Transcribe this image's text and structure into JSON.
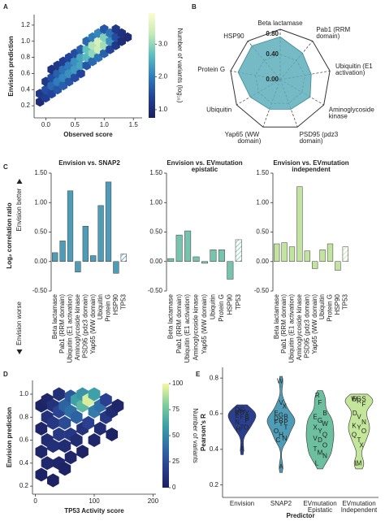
{
  "panel_labels": [
    "A",
    "B",
    "C",
    "D",
    "E"
  ],
  "chart_data": [
    {
      "type": "hexbin",
      "xlabel": "Observed score",
      "ylabel": "Envision prediction",
      "x": [
        -0.1,
        -0.1,
        0,
        0,
        0,
        0.1,
        0.1,
        0.1,
        0.1,
        0.2,
        0.2,
        0.2,
        0.2,
        0.3,
        0.3,
        0.3,
        0.3,
        0.4,
        0.4,
        0.4,
        0.4,
        0.5,
        0.5,
        0.5,
        0.5,
        0.6,
        0.6,
        0.6,
        0.6,
        0.7,
        0.7,
        0.7,
        0.7,
        0.8,
        0.8,
        0.8,
        0.8,
        0.9,
        0.9,
        0.9,
        0.9,
        1.0,
        1.0,
        1.0,
        1.0,
        1.1,
        1.1,
        1.1,
        1.2,
        1.2,
        1.2,
        1.3,
        1.3,
        1.4
      ],
      "y": [
        0.25,
        0.35,
        0.3,
        0.4,
        0.5,
        0.35,
        0.45,
        0.55,
        0.65,
        0.4,
        0.5,
        0.6,
        0.7,
        0.45,
        0.55,
        0.65,
        0.75,
        0.5,
        0.6,
        0.7,
        0.8,
        0.55,
        0.65,
        0.75,
        0.85,
        0.6,
        0.7,
        0.8,
        0.9,
        0.7,
        0.8,
        0.9,
        1.0,
        0.75,
        0.85,
        0.95,
        1.05,
        0.8,
        0.9,
        1.0,
        1.1,
        0.85,
        0.95,
        1.05,
        1.15,
        0.9,
        1.0,
        1.1,
        0.95,
        1.05,
        1.15,
        1.0,
        1.1,
        1.05
      ],
      "values": [
        1.0,
        1.2,
        1.3,
        1.5,
        1.2,
        1.4,
        1.8,
        1.5,
        1.1,
        1.6,
        2.0,
        1.7,
        1.2,
        1.7,
        2.1,
        1.9,
        1.3,
        1.6,
        2.2,
        2.0,
        1.4,
        1.5,
        2.3,
        2.2,
        1.5,
        1.4,
        2.4,
        2.4,
        1.7,
        1.6,
        2.6,
        2.7,
        1.8,
        1.8,
        3.0,
        3.2,
        2.0,
        1.9,
        3.4,
        3.5,
        2.1,
        1.7,
        3.1,
        2.9,
        1.6,
        1.4,
        2.2,
        1.9,
        1.2,
        1.5,
        1.2,
        1.0,
        1.1,
        1.0
      ],
      "xlim": [
        -0.2,
        1.65
      ],
      "ylim": [
        0.05,
        1.33
      ],
      "xticks": [
        {
          "value": 0,
          "label": "0.0"
        },
        0.5,
        {
          "value": 1,
          "label": "1.0"
        },
        1.5
      ],
      "yticks": [
        0.2,
        0.4,
        0.6,
        0.8,
        {
          "value": 1,
          "label": "1.0"
        },
        1.2
      ],
      "colorbar": {
        "label": "Number of variants (log₁₀)",
        "lim": [
          0.75,
          3.95
        ],
        "ticks": [
          {
            "value": 1,
            "label": "1.0"
          },
          {
            "value": 2,
            "label": "2.0"
          },
          {
            "value": 3,
            "label": "3.0"
          }
        ]
      },
      "colormap": [
        "#1b1f5e",
        "#22429a",
        "#2f7fbd",
        "#5cc0c0",
        "#c6ebb4",
        "#fbfdd0"
      ]
    },
    {
      "type": "radar",
      "categories": [
        "Beta lactamase",
        "Pab1 (RRM domain)",
        "Ubiquitin (E1 activation)",
        "Aminoglycoside kinase",
        "PSD95 (pdz3 domain)",
        "Yap65 (WW domain)",
        "Ubiquitin",
        "Protein G",
        "HSP90"
      ],
      "values": [
        0.68,
        0.55,
        0.5,
        0.55,
        0.5,
        0.5,
        0.55,
        0.68,
        0.7
      ],
      "color": "#5eaebb",
      "rlim": [
        0,
        0.8
      ],
      "rticks": [
        {
          "value": 0,
          "label": "0.00"
        },
        {
          "value": 0.4,
          "label": "0.40"
        },
        {
          "value": 0.8,
          "label": "0.80"
        }
      ]
    },
    {
      "type": "bar",
      "title": "Envision vs. SNAP2",
      "ylabel": "Log₂ correlation ratio",
      "annotations": [
        "Envision better",
        "Envision worse"
      ],
      "categories": [
        "Beta lactamase",
        "Pab1 (RRM domain)",
        "Ubiquitin (E1 activation)",
        "Aminoglycoside kinase",
        "PSD95 (pdz3 domain)",
        "Yap65 (WW domain)",
        "Ubiquitin",
        "Protein G",
        "HSP90",
        "TP53"
      ],
      "values": [
        0.15,
        0.35,
        1.2,
        -0.18,
        0.6,
        0.1,
        0.95,
        1.35,
        -0.2,
        0.13
      ],
      "hatched": [
        false,
        false,
        false,
        false,
        false,
        false,
        false,
        false,
        false,
        true
      ],
      "color": "#4f9cb6",
      "ylim": [
        -0.5,
        1.5
      ],
      "yticks": [
        {
          "value": -0.5,
          "label": "-0.50"
        },
        {
          "value": 0,
          "label": "0.00"
        },
        {
          "value": 0.5,
          "label": "0.50"
        },
        {
          "value": 1,
          "label": "1.00"
        },
        {
          "value": 1.5,
          "label": "1.50"
        }
      ]
    },
    {
      "type": "bar",
      "title": "Envision vs. EVmutation",
      "subtitle": "epistatic",
      "categories": [
        "Beta lactamase",
        "Pab1 (RRM domain)",
        "Ubiquitin (E1 activation)",
        "Aminoglycoside kinase",
        "Yap65 (WW domain)",
        "Ubiquitin",
        "Protein G",
        "HSP90",
        "TP53"
      ],
      "values": [
        0.05,
        0.45,
        0.52,
        0.08,
        -0.03,
        0.2,
        0.2,
        -0.3,
        0.37
      ],
      "hatched": [
        false,
        false,
        false,
        false,
        false,
        false,
        false,
        false,
        true
      ],
      "color": "#78c3ad",
      "ylim": [
        -0.5,
        1.5
      ],
      "yticks": [
        {
          "value": -0.5,
          "label": "-0.50"
        },
        {
          "value": 0,
          "label": "0.00"
        },
        {
          "value": 0.5,
          "label": "0.50"
        },
        {
          "value": 1,
          "label": "1.00"
        },
        {
          "value": 1.5,
          "label": "1.50"
        }
      ]
    },
    {
      "type": "bar",
      "title": "Envision vs. EVmutation",
      "subtitle": "independent",
      "categories": [
        "Beta lactamase",
        "Pab1 (RRM domain)",
        "Ubiquitin (E1 activation)",
        "Aminoglycoside kinase",
        "PSD95 (pdz3 domain)",
        "Yap65 (WW domain)",
        "Ubiquitin",
        "Protein G",
        "HSP90",
        "TP53"
      ],
      "values": [
        0.3,
        0.32,
        0.25,
        1.27,
        0.18,
        -0.12,
        0.2,
        0.3,
        -0.15,
        0.25
      ],
      "hatched": [
        false,
        false,
        false,
        false,
        false,
        false,
        false,
        false,
        false,
        true
      ],
      "color": "#c3e3a1",
      "ylim": [
        -0.5,
        1.5
      ],
      "yticks": [
        {
          "value": -0.5,
          "label": "-0.50"
        },
        {
          "value": 0,
          "label": "0.00"
        },
        {
          "value": 0.5,
          "label": "0.50"
        },
        {
          "value": 1,
          "label": "1.00"
        },
        {
          "value": 1.5,
          "label": "1.50"
        }
      ]
    },
    {
      "type": "hexbin",
      "xlabel": "TP53 Activity score",
      "ylabel": "Envision prediction",
      "x": [
        10,
        10,
        10,
        10,
        20,
        20,
        20,
        20,
        30,
        30,
        30,
        30,
        40,
        40,
        40,
        40,
        50,
        50,
        50,
        50,
        60,
        60,
        60,
        60,
        70,
        70,
        70,
        80,
        80,
        80,
        80,
        90,
        90,
        100,
        100,
        100,
        110,
        110,
        120,
        120,
        130,
        130,
        140
      ],
      "y": [
        0.3,
        0.5,
        0.7,
        0.9,
        0.4,
        0.6,
        0.8,
        0.95,
        0.25,
        0.55,
        0.75,
        0.9,
        0.4,
        0.65,
        0.85,
        1.0,
        0.35,
        0.55,
        0.75,
        0.9,
        0.45,
        0.65,
        0.85,
        0.98,
        0.6,
        0.8,
        0.95,
        0.5,
        0.7,
        0.9,
        1.0,
        0.75,
        0.95,
        0.6,
        0.85,
        1.0,
        0.7,
        0.9,
        0.8,
        0.95,
        0.65,
        0.85,
        0.9
      ],
      "values": [
        3,
        5,
        4,
        3,
        6,
        8,
        10,
        5,
        2,
        10,
        15,
        12,
        5,
        15,
        22,
        10,
        3,
        8,
        25,
        35,
        5,
        15,
        40,
        30,
        8,
        35,
        60,
        3,
        12,
        70,
        55,
        20,
        95,
        5,
        45,
        60,
        8,
        40,
        15,
        20,
        3,
        8,
        5
      ],
      "xlim": [
        -5,
        205
      ],
      "ylim": [
        0.13,
        1.12
      ],
      "xticks": [
        0,
        100,
        200
      ],
      "yticks": [
        0.2,
        0.4,
        0.6,
        0.8,
        {
          "value": 1,
          "label": "1.0"
        }
      ],
      "colorbar": {
        "label": "Number of variants",
        "lim": [
          0,
          100
        ],
        "ticks": [
          0,
          25,
          50,
          75,
          100
        ]
      },
      "colormap": [
        "#1b1f5e",
        "#2a3f8f",
        "#2f6fa8",
        "#3ea0a8",
        "#7fcf9a",
        "#f7f7a0"
      ]
    },
    {
      "type": "violin",
      "ylabel": "Pearson's R",
      "xlabel": "Predictor",
      "ylim": [
        0.13,
        0.86
      ],
      "yticks": [
        0.2,
        0.4,
        0.6,
        0.8
      ],
      "series": [
        {
          "name": "Envision",
          "note": null,
          "color": "#2b3f8f",
          "labels": [
            "D",
            "W",
            "Y",
            "R",
            "C",
            "B",
            "E",
            "F",
            "P",
            "N",
            "T",
            "O",
            "H",
            "A"
          ],
          "values": [
            0.62,
            0.61,
            0.6,
            0.6,
            0.62,
            0.58,
            0.59,
            0.58,
            0.56,
            0.55,
            0.52,
            0.52,
            0.51,
            0.4
          ]
        },
        {
          "name": "SNAP2",
          "note": null,
          "color": "#4f9cb6",
          "labels": [
            "W",
            "V",
            "X",
            "E",
            "G",
            "B",
            "D",
            "R",
            "P",
            "F",
            "Y",
            "T",
            "O",
            "H",
            "N",
            "C",
            "A"
          ],
          "values": [
            0.78,
            0.66,
            0.64,
            0.6,
            0.59,
            0.58,
            0.57,
            0.56,
            0.55,
            0.55,
            0.54,
            0.52,
            0.5,
            0.48,
            0.46,
            0.45,
            0.3
          ]
        },
        {
          "name": "EVmutation",
          "note": "Epistatic",
          "color": "#6cc0a0",
          "labels": [
            "R",
            "F",
            "B",
            "E",
            "G",
            "W",
            "X",
            "Y",
            "Q",
            "V",
            "D",
            "O",
            "T",
            "M",
            "N",
            "L"
          ],
          "values": [
            0.7,
            0.66,
            0.6,
            0.58,
            0.56,
            0.54,
            0.52,
            0.5,
            0.48,
            0.46,
            0.45,
            0.42,
            0.4,
            0.38,
            0.36,
            0.32
          ]
        },
        {
          "name": "EVmutation",
          "note": "Independent",
          "color": "#c4e69a",
          "labels": [
            "E",
            "G",
            "S",
            "W",
            "R",
            "F",
            "D",
            "V",
            "N",
            "K",
            "Y",
            "O",
            "Q",
            "T",
            "X",
            "L",
            "M"
          ],
          "values": [
            0.68,
            0.68,
            0.68,
            0.68,
            0.67,
            0.65,
            0.6,
            0.58,
            0.55,
            0.53,
            0.52,
            0.5,
            0.48,
            0.45,
            0.42,
            0.32,
            0.32
          ]
        }
      ]
    }
  ]
}
